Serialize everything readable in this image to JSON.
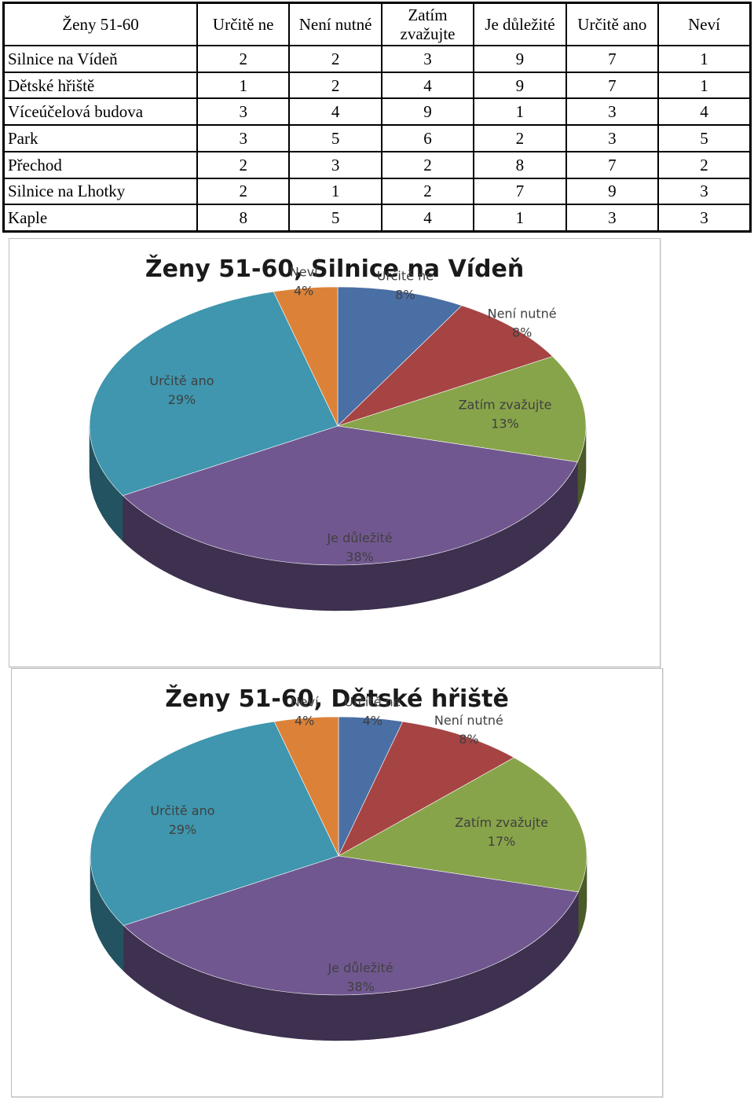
{
  "table": {
    "corner": "Ženy 51-60",
    "columns": [
      "Určitě ne",
      "Není nutné",
      "Zatím zvažujte",
      "Je důležité",
      "Určitě ano",
      "Neví"
    ],
    "rows": [
      {
        "label": "Silnice na Vídeň",
        "values": [
          "2",
          "2",
          "3",
          "9",
          "7",
          "1"
        ]
      },
      {
        "label": "Dětské hřiště",
        "values": [
          "1",
          "2",
          "4",
          "9",
          "7",
          "1"
        ]
      },
      {
        "label": "Víceúčelová budova",
        "values": [
          "3",
          "4",
          "9",
          "1",
          "3",
          "4"
        ]
      },
      {
        "label": "Park",
        "values": [
          "3",
          "5",
          "6",
          "2",
          "3",
          "5"
        ]
      },
      {
        "label": "Přechod",
        "values": [
          "2",
          "3",
          "2",
          "8",
          "7",
          "2"
        ]
      },
      {
        "label": "Silnice na Lhotky",
        "values": [
          "2",
          "1",
          "2",
          "7",
          "9",
          "3"
        ]
      },
      {
        "label": "Kaple",
        "values": [
          "8",
          "5",
          "4",
          "1",
          "3",
          "3"
        ]
      }
    ]
  },
  "chart_data": [
    {
      "type": "pie",
      "title": "Ženy 51-60, Silnice na Vídeň",
      "categories": [
        "Určitě ne",
        "Není nutné",
        "Zatím zvažujte",
        "Je důležité",
        "Určitě ano",
        "Neví"
      ],
      "values": [
        2,
        2,
        3,
        9,
        7,
        1
      ],
      "data_labels": [
        "8%",
        "8%",
        "13%",
        "38%",
        "29%",
        "4%"
      ],
      "colors": [
        "#4a6fa5",
        "#a64444",
        "#88a44a",
        "#715790",
        "#3f96ae",
        "#dc8238"
      ],
      "style": "3d"
    },
    {
      "type": "pie",
      "title": "Ženy 51-60, Dětské hřiště",
      "categories": [
        "Určitě ne",
        "Není nutné",
        "Zatím zvažujte",
        "Je důležité",
        "Určitě ano",
        "Neví"
      ],
      "values": [
        1,
        2,
        4,
        9,
        7,
        1
      ],
      "data_labels": [
        "4%",
        "8%",
        "17%",
        "38%",
        "29%",
        "4%"
      ],
      "colors": [
        "#4a6fa5",
        "#a64444",
        "#88a44a",
        "#715790",
        "#3f96ae",
        "#dc8238"
      ],
      "style": "3d"
    }
  ]
}
